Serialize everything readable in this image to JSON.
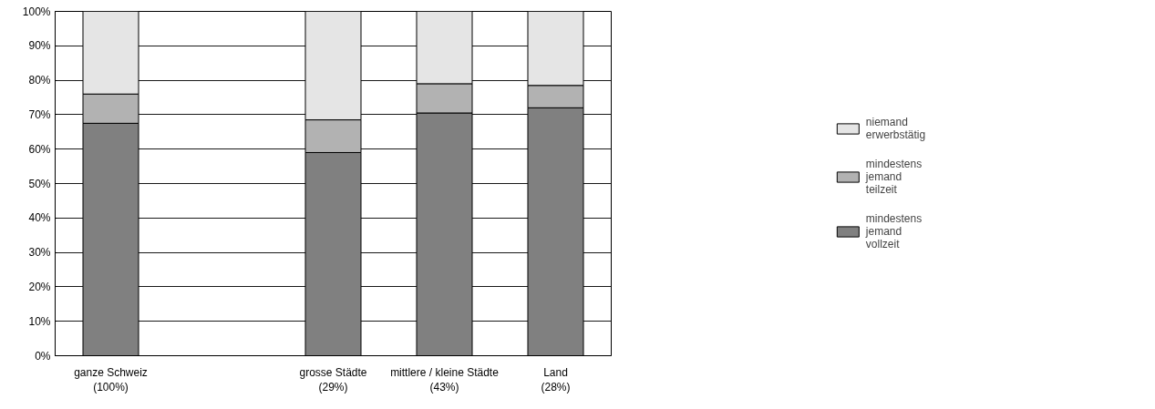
{
  "chart_data": {
    "type": "bar",
    "stacked": true,
    "categories": [
      "ganze Schweiz\n(100%)",
      null,
      "grosse Städte\n(29%)",
      "mittlere / kleine Städte\n(43%)",
      "Land\n(28%)"
    ],
    "series": [
      {
        "name": "mindestens jemand vollzeit",
        "color": "#808080",
        "values": [
          67.5,
          null,
          59,
          70.5,
          72
        ]
      },
      {
        "name": "mindestens jemand teilzeit",
        "color": "#b2b2b2",
        "values": [
          8.5,
          null,
          9.5,
          8.5,
          6.5
        ]
      },
      {
        "name": "niemand erwerbstätig",
        "color": "#e5e5e5",
        "values": [
          24,
          null,
          31.5,
          21,
          21.5
        ]
      }
    ],
    "ylim": [
      0,
      100
    ],
    "yticks": [
      {
        "value": 0,
        "label": "0%"
      },
      {
        "value": 10,
        "label": "10%"
      },
      {
        "value": 20,
        "label": "20%"
      },
      {
        "value": 30,
        "label": "30%"
      },
      {
        "value": 40,
        "label": "40%"
      },
      {
        "value": 50,
        "label": "50%"
      },
      {
        "value": 60,
        "label": "60%"
      },
      {
        "value": 70,
        "label": "70%"
      },
      {
        "value": 80,
        "label": "80%"
      },
      {
        "value": 90,
        "label": "90%"
      },
      {
        "value": 100,
        "label": "100%"
      }
    ],
    "grid": "y",
    "legend": "right"
  }
}
